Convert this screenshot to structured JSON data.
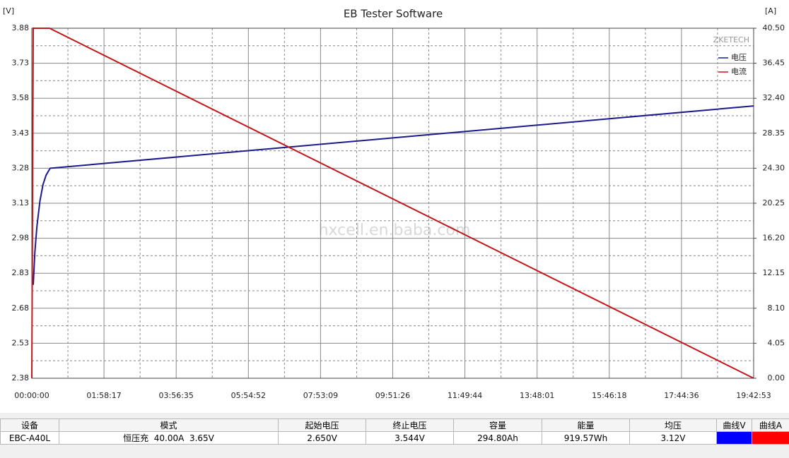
{
  "chart_data": {
    "type": "line",
    "title": "EB Tester Software",
    "y_label": "[V]",
    "y2_label": "[A]",
    "annotations": [
      "ZKETECH",
      "hxcell.en.baba.com"
    ],
    "xlim": [
      0,
      70973
    ],
    "xticks": [
      {
        "value": 0,
        "label": "00:00:00"
      },
      {
        "value": 7097,
        "label": "01:58:17"
      },
      {
        "value": 14195,
        "label": "03:56:35"
      },
      {
        "value": 21292,
        "label": "05:54:52"
      },
      {
        "value": 28389,
        "label": "07:53:09"
      },
      {
        "value": 35486,
        "label": "09:51:26"
      },
      {
        "value": 42584,
        "label": "11:49:44"
      },
      {
        "value": 49681,
        "label": "13:48:01"
      },
      {
        "value": 56778,
        "label": "15:46:18"
      },
      {
        "value": 63876,
        "label": "17:44:36"
      },
      {
        "value": 70973,
        "label": "19:42:53"
      }
    ],
    "ylim": [
      2.38,
      3.88
    ],
    "yticks": [
      2.38,
      2.53,
      2.68,
      2.83,
      2.98,
      3.13,
      3.28,
      3.43,
      3.58,
      3.73,
      3.88
    ],
    "y2lim": [
      0,
      40.5
    ],
    "y2ticks": [
      {
        "value": 0,
        "label": "0.00"
      },
      {
        "value": 4.05,
        "label": "4.05"
      },
      {
        "value": 8.1,
        "label": "8.10"
      },
      {
        "value": 12.15,
        "label": "12.15"
      },
      {
        "value": 16.2,
        "label": "16.20"
      },
      {
        "value": 20.25,
        "label": "20.25"
      },
      {
        "value": 24.3,
        "label": "24.30"
      },
      {
        "value": 28.35,
        "label": "28.35"
      },
      {
        "value": 32.4,
        "label": "32.40"
      },
      {
        "value": 36.45,
        "label": "36.45"
      },
      {
        "value": 40.5,
        "label": "40.50"
      }
    ],
    "grid": true,
    "legend": "top-right",
    "series": [
      {
        "name": "电压",
        "color": "#1a1a8c",
        "x": [
          140,
          300,
          500,
          800,
          1100,
          1400,
          1800,
          70973
        ],
        "values": [
          2.78,
          2.92,
          3.03,
          3.14,
          3.21,
          3.25,
          3.28,
          3.547
        ]
      },
      {
        "name": "电流",
        "color": "#c0181c",
        "axis": "y2",
        "x": [
          0,
          140,
          1740,
          70973
        ],
        "values": [
          0,
          40.5,
          40.5,
          0
        ]
      }
    ]
  },
  "table": {
    "columns": [
      "设备",
      "模式",
      "起始电压",
      "终止电压",
      "容量",
      "能量",
      "均压",
      "曲线V",
      "曲线A"
    ],
    "rows": [
      [
        "EBC-A40L",
        "恒压充  40.00A  3.65V",
        "2.650V",
        "3.544V",
        "294.80Ah",
        "919.57Wh",
        "3.12V"
      ]
    ],
    "swatches": [
      "#0000ff",
      "#ff0000"
    ]
  }
}
